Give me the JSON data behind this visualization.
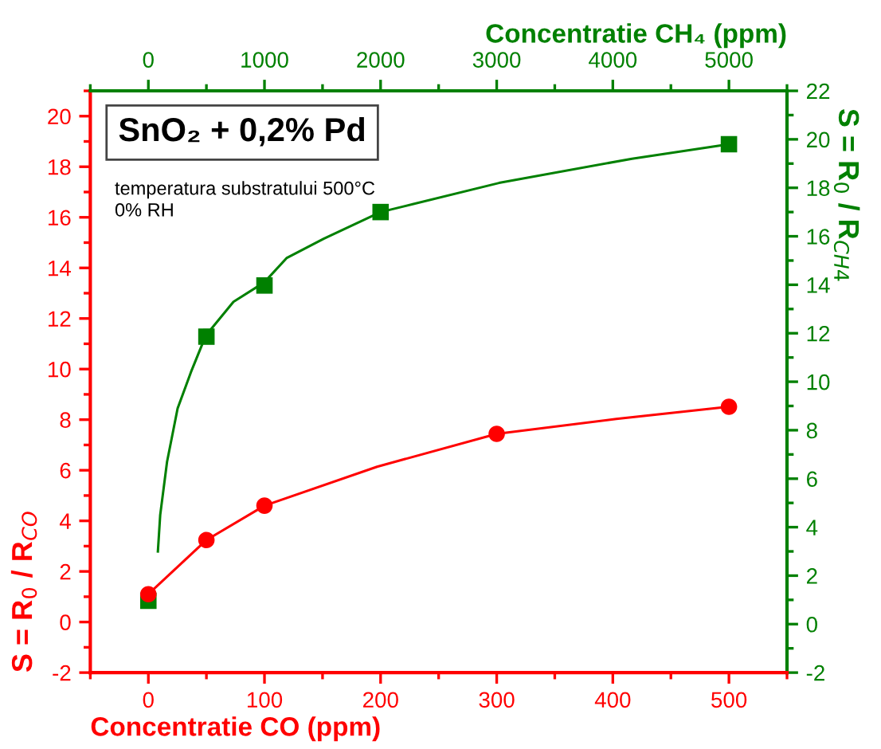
{
  "chart_data": [
    {
      "type": "scatter",
      "xlabel": "Concentratie CO (ppm)",
      "ylabel": "S = R$_{0}$ / R$_{CO}$",
      "annotations": [
        "SnO₂ + 0,2% Pd",
        "temperatura substratului 500°C\n0% RH"
      ],
      "xlim": [
        -50,
        550
      ],
      "xticks": [
        0,
        100,
        200,
        300,
        400,
        500
      ],
      "ylim": [
        -2,
        21
      ],
      "yticks": [
        -2,
        0,
        2,
        4,
        6,
        8,
        10,
        12,
        14,
        16,
        18,
        20
      ],
      "grid": false,
      "legend": false,
      "series": [
        {
          "type": "line",
          "color": "#ff0000",
          "marker": "none",
          "line_style": "solid",
          "x": [
            0,
            50,
            100,
            197,
            300,
            403,
            500
          ],
          "values": [
            1.1,
            3.24,
            4.6,
            6.14,
            7.44,
            8.03,
            8.51
          ]
        },
        {
          "color": "#ff0000",
          "marker": "circle",
          "x": [
            0,
            50,
            100,
            300,
            500
          ],
          "values": [
            1.1,
            3.24,
            4.6,
            7.44,
            8.51
          ]
        }
      ]
    },
    {
      "type": "scatter",
      "xlabel": "Concentratie CH₄ (ppm)",
      "ylabel": "S = R$_{0}$ / R$_{CH4}$",
      "xlim": [
        -500,
        5500
      ],
      "xticks": [
        0,
        1000,
        2000,
        3000,
        4000,
        5000
      ],
      "ylim": [
        -2,
        22
      ],
      "yticks": [
        -2,
        0,
        2,
        4,
        6,
        8,
        10,
        12,
        14,
        16,
        18,
        20,
        22
      ],
      "grid": false,
      "legend": false,
      "series": [
        {
          "type": "line",
          "color": "#008000",
          "marker": "none",
          "line_style": "solid",
          "x": [
            82,
            102,
            161,
            252,
            367,
            494,
            733,
            998,
            1190,
            1510,
            2000,
            3020,
            4165,
            5000
          ],
          "values": [
            3.0,
            4.5,
            6.7,
            8.9,
            10.4,
            11.9,
            13.3,
            14.1,
            15.1,
            15.9,
            17.0,
            18.2,
            19.2,
            19.8
          ]
        },
        {
          "color": "#008000",
          "marker": "square",
          "x": [
            0,
            500,
            1000,
            2000,
            5000
          ],
          "values": [
            0.96,
            11.86,
            13.97,
            17.0,
            19.8
          ]
        }
      ]
    }
  ]
}
